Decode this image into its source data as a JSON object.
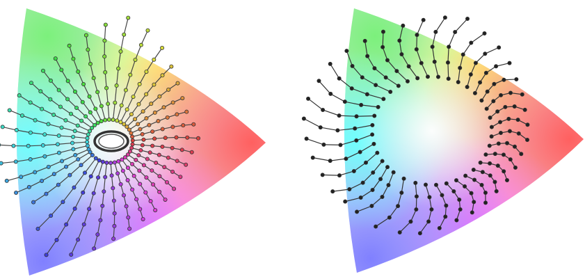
{
  "figure": {
    "panels": [
      {
        "id": "left",
        "description_free": true,
        "chart_data": {
          "type": "diagram",
          "kind": "chromaticity-gamut-with-hue-lines",
          "markers": "circles",
          "colors": {
            "line": "#444444",
            "dot_fill": "by-position"
          },
          "lines": [
            {
              "a": -140,
              "r0": 0.16,
              "r1": 0.7,
              "n": 6
            },
            {
              "a": -128,
              "r0": 0.16,
              "r1": 0.82,
              "n": 6
            },
            {
              "a": -118,
              "r0": 0.16,
              "r1": 0.95,
              "n": 7
            },
            {
              "a": -108,
              "r0": 0.16,
              "r1": 0.88,
              "n": 7
            },
            {
              "a": -98,
              "r0": 0.16,
              "r1": 0.8,
              "n": 7
            },
            {
              "a": -88,
              "r0": 0.16,
              "r1": 0.72,
              "n": 7
            },
            {
              "a": -78,
              "r0": 0.16,
              "r1": 0.66,
              "n": 7
            },
            {
              "a": -68,
              "r0": 0.16,
              "r1": 0.62,
              "n": 7
            },
            {
              "a": -58,
              "r0": 0.16,
              "r1": 0.6,
              "n": 7
            },
            {
              "a": -48,
              "r0": 0.16,
              "r1": 0.58,
              "n": 7
            },
            {
              "a": -38,
              "r0": 0.16,
              "r1": 0.57,
              "n": 7
            },
            {
              "a": -28,
              "r0": 0.16,
              "r1": 0.56,
              "n": 7
            },
            {
              "a": -18,
              "r0": 0.16,
              "r1": 0.56,
              "n": 7
            },
            {
              "a": -8,
              "r0": 0.16,
              "r1": 0.58,
              "n": 7
            },
            {
              "a": 2,
              "r0": 0.16,
              "r1": 0.62,
              "n": 7
            },
            {
              "a": 12,
              "r0": 0.16,
              "r1": 0.6,
              "n": 7
            },
            {
              "a": 22,
              "r0": 0.16,
              "r1": 0.58,
              "n": 7
            },
            {
              "a": 32,
              "r0": 0.16,
              "r1": 0.6,
              "n": 7
            },
            {
              "a": 42,
              "r0": 0.16,
              "r1": 0.64,
              "n": 7
            },
            {
              "a": 52,
              "r0": 0.16,
              "r1": 0.7,
              "n": 7
            },
            {
              "a": 62,
              "r0": 0.16,
              "r1": 0.78,
              "n": 7
            },
            {
              "a": 72,
              "r0": 0.16,
              "r1": 0.86,
              "n": 7
            },
            {
              "a": 82,
              "r0": 0.16,
              "r1": 0.92,
              "n": 7
            },
            {
              "a": 92,
              "r0": 0.16,
              "r1": 0.86,
              "n": 7
            },
            {
              "a": 102,
              "r0": 0.16,
              "r1": 0.8,
              "n": 7
            },
            {
              "a": 112,
              "r0": 0.16,
              "r1": 0.76,
              "n": 7
            },
            {
              "a": 122,
              "r0": 0.16,
              "r1": 0.72,
              "n": 7
            },
            {
              "a": 132,
              "r0": 0.16,
              "r1": 0.7,
              "n": 7
            },
            {
              "a": 142,
              "r0": 0.16,
              "r1": 0.7,
              "n": 7
            },
            {
              "a": 152,
              "r0": 0.16,
              "r1": 0.72,
              "n": 7
            },
            {
              "a": 162,
              "r0": 0.16,
              "r1": 0.74,
              "n": 7
            },
            {
              "a": 172,
              "r0": 0.16,
              "r1": 0.76,
              "n": 7
            },
            {
              "a": -178,
              "r0": 0.16,
              "r1": 0.78,
              "n": 7
            },
            {
              "a": -168,
              "r0": 0.16,
              "r1": 0.78,
              "n": 7
            },
            {
              "a": -158,
              "r0": 0.16,
              "r1": 0.78,
              "n": 7
            },
            {
              "a": -150,
              "r0": 0.16,
              "r1": 0.76,
              "n": 7
            }
          ]
        }
      },
      {
        "id": "right",
        "chart_data": {
          "type": "diagram",
          "kind": "chromaticity-gamut-with-hue-lines",
          "markers": "circles",
          "colors": {
            "line": "#333333",
            "dot_fill": "#222222"
          },
          "lines": [
            {
              "a": -130,
              "r0": 0.4,
              "r1": 0.78,
              "n": 5
            },
            {
              "a": -118,
              "r0": 0.4,
              "r1": 0.8,
              "n": 5
            },
            {
              "a": -106,
              "r0": 0.4,
              "r1": 0.78,
              "n": 5
            },
            {
              "a": -96,
              "r0": 0.4,
              "r1": 0.76,
              "n": 5
            },
            {
              "a": -86,
              "r0": 0.4,
              "r1": 0.72,
              "n": 5
            },
            {
              "a": -76,
              "r0": 0.4,
              "r1": 0.68,
              "n": 5
            },
            {
              "a": -66,
              "r0": 0.4,
              "r1": 0.66,
              "n": 5
            },
            {
              "a": -56,
              "r0": 0.4,
              "r1": 0.64,
              "n": 5
            },
            {
              "a": -46,
              "r0": 0.4,
              "r1": 0.62,
              "n": 5
            },
            {
              "a": -36,
              "r0": 0.4,
              "r1": 0.62,
              "n": 5
            },
            {
              "a": -26,
              "r0": 0.4,
              "r1": 0.62,
              "n": 5
            },
            {
              "a": -16,
              "r0": 0.4,
              "r1": 0.62,
              "n": 5
            },
            {
              "a": -6,
              "r0": 0.4,
              "r1": 0.64,
              "n": 5
            },
            {
              "a": 4,
              "r0": 0.4,
              "r1": 0.64,
              "n": 5
            },
            {
              "a": 14,
              "r0": 0.4,
              "r1": 0.64,
              "n": 5
            },
            {
              "a": 24,
              "r0": 0.4,
              "r1": 0.66,
              "n": 5
            },
            {
              "a": 34,
              "r0": 0.4,
              "r1": 0.68,
              "n": 5
            },
            {
              "a": 44,
              "r0": 0.4,
              "r1": 0.72,
              "n": 5
            },
            {
              "a": 54,
              "r0": 0.4,
              "r1": 0.76,
              "n": 5
            },
            {
              "a": 64,
              "r0": 0.4,
              "r1": 0.8,
              "n": 5
            },
            {
              "a": 74,
              "r0": 0.4,
              "r1": 0.86,
              "n": 5
            },
            {
              "a": 84,
              "r0": 0.4,
              "r1": 0.84,
              "n": 5
            },
            {
              "a": 94,
              "r0": 0.4,
              "r1": 0.82,
              "n": 5
            },
            {
              "a": 104,
              "r0": 0.4,
              "r1": 0.8,
              "n": 5
            },
            {
              "a": 114,
              "r0": 0.4,
              "r1": 0.8,
              "n": 5
            },
            {
              "a": 124,
              "r0": 0.4,
              "r1": 0.8,
              "n": 5
            },
            {
              "a": 134,
              "r0": 0.4,
              "r1": 0.82,
              "n": 5
            },
            {
              "a": 144,
              "r0": 0.4,
              "r1": 0.84,
              "n": 5
            },
            {
              "a": 154,
              "r0": 0.4,
              "r1": 0.84,
              "n": 5
            },
            {
              "a": 164,
              "r0": 0.4,
              "r1": 0.86,
              "n": 5
            },
            {
              "a": 174,
              "r0": 0.4,
              "r1": 0.86,
              "n": 5
            },
            {
              "a": -176,
              "r0": 0.4,
              "r1": 0.84,
              "n": 5
            },
            {
              "a": -166,
              "r0": 0.4,
              "r1": 0.82,
              "n": 5
            },
            {
              "a": -156,
              "r0": 0.4,
              "r1": 0.8,
              "n": 5
            },
            {
              "a": -146,
              "r0": 0.4,
              "r1": 0.8,
              "n": 5
            },
            {
              "a": -138,
              "r0": 0.4,
              "r1": 0.78,
              "n": 5
            }
          ]
        }
      }
    ]
  }
}
